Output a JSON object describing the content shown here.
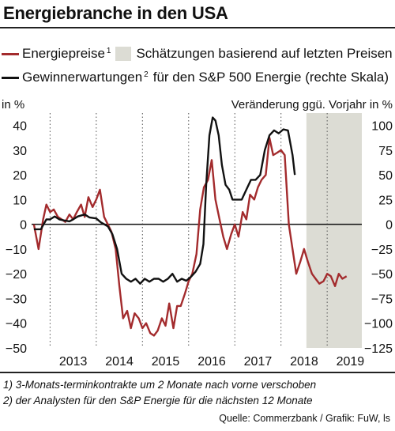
{
  "title": "Energiebranche in den USA",
  "legend": {
    "series1": "Energiepreise",
    "series1_sup": "1",
    "shade": "Schätzungen basierend auf letzten Preisen",
    "series2": "Gewinnerwartungen",
    "series2_sup": "2",
    "series2_suffix": "für den S&P 500 Energie (rechte Skala)"
  },
  "footnotes": [
    "1) 3-Monats-terminkontrakte um 2 Monate nach vorne verschoben",
    "2) der Analysten für den S&P Energie für die nächsten 12 Monate"
  ],
  "source": "Quelle: Commerzbank / Grafik: FuW, ls",
  "colors": {
    "series1": "#a32b2d",
    "series2": "#111111",
    "shade": "#dcdcd4"
  },
  "chart_data": {
    "type": "line",
    "ylabel_left": "in %",
    "ylabel_right": "Veränderung ggü. Vorjahr in %",
    "ylim_left": [
      -50,
      45
    ],
    "ylim_right": [
      -125,
      112.5
    ],
    "yticks_left": [
      40,
      30,
      20,
      10,
      0,
      -10,
      -20,
      -30,
      -40,
      -50
    ],
    "yticks_right": [
      100,
      75,
      50,
      25,
      0,
      -25,
      -50,
      -75,
      -100,
      -125
    ],
    "xlim": [
      2012.6,
      2019.75
    ],
    "xticks": [
      "2013",
      "2014",
      "2015",
      "2016",
      "2017",
      "2018",
      "2019"
    ],
    "shaded_region": [
      2018.55,
      2019.75
    ],
    "series": [
      {
        "name": "Energiepreise",
        "axis": "left",
        "x": [
          2012.65,
          2012.75,
          2012.85,
          2012.92,
          2013.0,
          2013.08,
          2013.17,
          2013.25,
          2013.33,
          2013.42,
          2013.5,
          2013.58,
          2013.67,
          2013.75,
          2013.83,
          2013.92,
          2014.0,
          2014.08,
          2014.17,
          2014.25,
          2014.33,
          2014.42,
          2014.5,
          2014.58,
          2014.67,
          2014.75,
          2014.83,
          2014.92,
          2015.0,
          2015.08,
          2015.17,
          2015.25,
          2015.33,
          2015.42,
          2015.5,
          2015.58,
          2015.67,
          2015.75,
          2015.83,
          2015.92,
          2016.0,
          2016.08,
          2016.17,
          2016.25,
          2016.33,
          2016.42,
          2016.5,
          2016.58,
          2016.67,
          2016.75,
          2016.83,
          2016.92,
          2017.0,
          2017.08,
          2017.17,
          2017.25,
          2017.33,
          2017.42,
          2017.5,
          2017.58,
          2017.67,
          2017.75,
          2017.83,
          2017.92,
          2018.0,
          2018.08,
          2018.17,
          2018.25,
          2018.33,
          2018.42,
          2018.5,
          2018.58,
          2018.67,
          2018.75,
          2018.83,
          2018.92,
          2019.0,
          2019.08,
          2019.17,
          2019.25,
          2019.33,
          2019.42
        ],
        "values": [
          0,
          -10,
          2,
          8,
          5,
          6,
          3,
          2,
          1,
          4,
          2,
          5,
          8,
          3,
          11,
          7,
          10,
          14,
          3,
          0,
          -3,
          -10,
          -25,
          -38,
          -35,
          -42,
          -36,
          -38,
          -42,
          -40,
          -44,
          -45,
          -43,
          -38,
          -41,
          -32,
          -42,
          -33,
          -33,
          -28,
          -23,
          -20,
          -12,
          6,
          15,
          18,
          26,
          10,
          2,
          -5,
          -10,
          -4,
          0,
          -5,
          5,
          2,
          12,
          10,
          15,
          18,
          20,
          35,
          28,
          29,
          30,
          28,
          0,
          -10,
          -20,
          -15,
          -10,
          -15,
          -20,
          -22,
          -24,
          -23,
          -20,
          -21,
          -25,
          -20,
          -22,
          -21
        ]
      },
      {
        "name": "Gewinnerwartungen",
        "axis": "right",
        "x": [
          2012.65,
          2012.8,
          2012.92,
          2013.0,
          2013.1,
          2013.2,
          2013.3,
          2013.42,
          2013.5,
          2013.6,
          2013.75,
          2013.85,
          2014.0,
          2014.1,
          2014.25,
          2014.35,
          2014.45,
          2014.55,
          2014.65,
          2014.75,
          2014.85,
          2014.95,
          2015.05,
          2015.15,
          2015.25,
          2015.35,
          2015.45,
          2015.55,
          2015.65,
          2015.75,
          2015.85,
          2015.95,
          2016.05,
          2016.15,
          2016.25,
          2016.32,
          2016.38,
          2016.45,
          2016.52,
          2016.58,
          2016.65,
          2016.72,
          2016.8,
          2016.88,
          2016.95,
          2017.05,
          2017.15,
          2017.25,
          2017.35,
          2017.45,
          2017.55,
          2017.65,
          2017.75,
          2017.85,
          2017.95,
          2018.05,
          2018.15,
          2018.25,
          2018.3
        ],
        "values": [
          -5,
          -5,
          5,
          5,
          8,
          5,
          4,
          3,
          5,
          8,
          10,
          7,
          6,
          2,
          -2,
          -10,
          -25,
          -50,
          -55,
          -58,
          -55,
          -60,
          -55,
          -58,
          -55,
          -55,
          -58,
          -55,
          -50,
          -58,
          -55,
          -57,
          -53,
          -48,
          -40,
          -20,
          40,
          90,
          108,
          105,
          90,
          60,
          40,
          35,
          25,
          25,
          25,
          35,
          45,
          45,
          50,
          75,
          90,
          95,
          92,
          96,
          95,
          70,
          50
        ]
      }
    ]
  }
}
